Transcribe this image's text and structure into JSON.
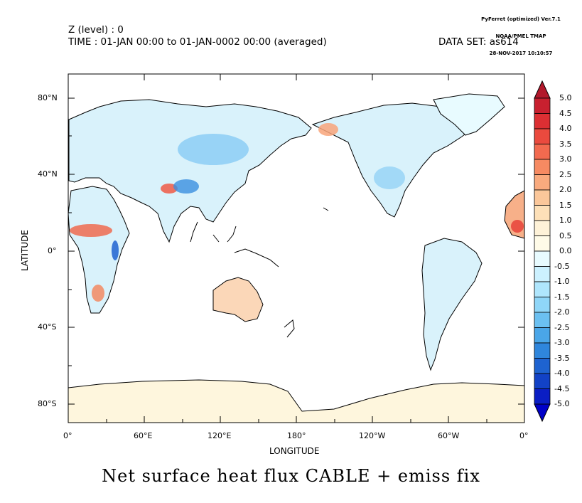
{
  "header": {
    "z_level": "Z (level) : 0",
    "time": "TIME : 01-JAN 00:00 to 01-JAN-0002 00:00 (averaged)",
    "dataset": "DATA SET: as614"
  },
  "stamp": {
    "line1": "PyFerret (optimized) Ver.7.1",
    "line2": "NOAA/PMEL TMAP",
    "line3": "28-NOV-2017 10:10:57"
  },
  "title": "Net surface heat flux CABLE + emiss fix",
  "axes": {
    "xlabel": "LONGITUDE",
    "ylabel": "LATITUDE",
    "x_ticks": [
      "0°",
      "60°E",
      "120°E",
      "180°",
      "120°W",
      "60°W",
      "0°"
    ],
    "y_ticks": [
      "80°N",
      "40°N",
      "0°",
      "40°S",
      "80°S"
    ]
  },
  "colorbar": {
    "labels": [
      "5.0",
      "4.5",
      "4.0",
      "3.5",
      "3.0",
      "2.5",
      "2.0",
      "1.5",
      "1.0",
      "0.5",
      "0.0",
      "-0.5",
      "-1.0",
      "-1.5",
      "-2.0",
      "-2.5",
      "-3.0",
      "-3.5",
      "-4.0",
      "-4.5",
      "-5.0"
    ],
    "colors": [
      "#b2182b",
      "#c8202f",
      "#dc2f33",
      "#ea4a3e",
      "#f26a4f",
      "#f68a62",
      "#f9aa7e",
      "#fbc79a",
      "#fde0b8",
      "#fef2d8",
      "#fffbe8",
      "#e8fbff",
      "#ccf1ff",
      "#afe6fd",
      "#8fd6f8",
      "#6bc0f1",
      "#4aa6e8",
      "#2f86dc",
      "#1e63d0",
      "#1242c6",
      "#0a1ec4",
      "#0000c8"
    ]
  }
}
